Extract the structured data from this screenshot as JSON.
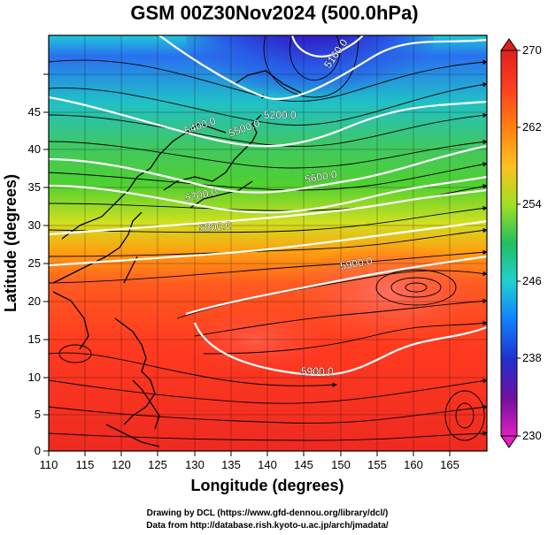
{
  "title": "GSM 00Z30Nov2024 (500.0hPa)",
  "x_axis": {
    "label": "Longitude (degrees)",
    "ticks": [
      "110",
      "115",
      "120",
      "125",
      "130",
      "135",
      "140",
      "145",
      "150",
      "155",
      "160",
      "165"
    ],
    "range": [
      110,
      170
    ]
  },
  "y_axis": {
    "label": "Latitude (degrees)",
    "ticks": [
      "0",
      "5",
      "10",
      "15",
      "20",
      "25",
      "30",
      "35",
      "40",
      "45"
    ],
    "range": [
      0,
      50
    ]
  },
  "colorbar": {
    "labels": [
      "270",
      "262",
      "254",
      "246",
      "238",
      "230"
    ],
    "range": [
      230,
      270
    ],
    "colors": [
      "#e020c0",
      "#7010a0",
      "#2030d0",
      "#1080ff",
      "#20d0d0",
      "#20c060",
      "#60d020",
      "#c0e020",
      "#ffb000",
      "#ff6000",
      "#ff3020",
      "#e02020"
    ]
  },
  "contours": {
    "labels": [
      "5160.0",
      "5200.0",
      "5400.0",
      "5500.0",
      "5600.0",
      "5700.0",
      "5800.0",
      "5900.0",
      "5900.0"
    ]
  },
  "credits": [
    "Drawing by DCL (https://www.gfd-dennou.org/library/dcl/)",
    "Data from http://database.rish.kyoto-u.ac.jp/arch/jmadata/"
  ]
}
